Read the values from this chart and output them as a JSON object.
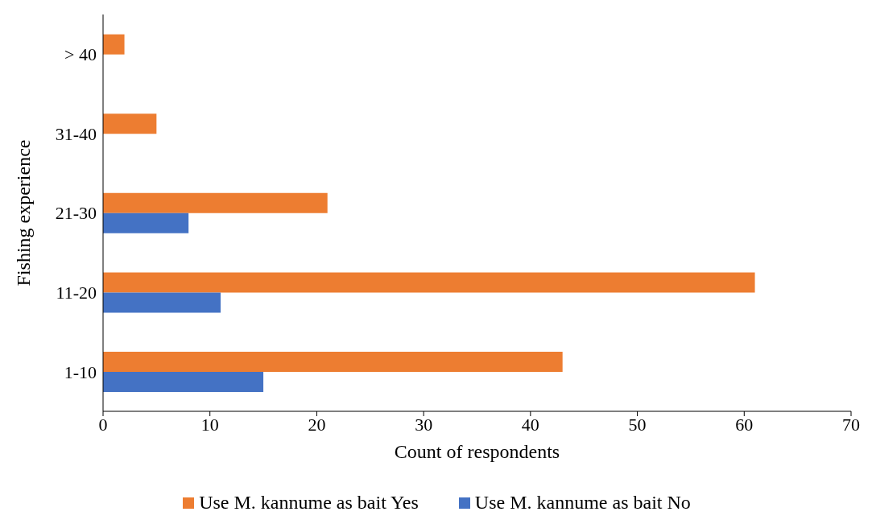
{
  "chart_data": {
    "type": "bar",
    "orientation": "horizontal",
    "xlabel": "Count of respondents",
    "ylabel": "Fishing experience",
    "categories": [
      "> 40",
      "31-40",
      "21-30",
      "11-20",
      "1-10"
    ],
    "series": [
      {
        "name": "Use M. kannume as bait Yes",
        "color": "#ed7d31",
        "values": [
          2,
          5,
          21,
          61,
          43
        ]
      },
      {
        "name": "Use M. kannume as bait No",
        "color": "#4472c4",
        "values": [
          null,
          null,
          8,
          11,
          15
        ]
      }
    ],
    "xlim": [
      0,
      70
    ],
    "xticks": [
      0,
      10,
      20,
      30,
      40,
      50,
      60,
      70
    ],
    "legend": "bottom"
  }
}
